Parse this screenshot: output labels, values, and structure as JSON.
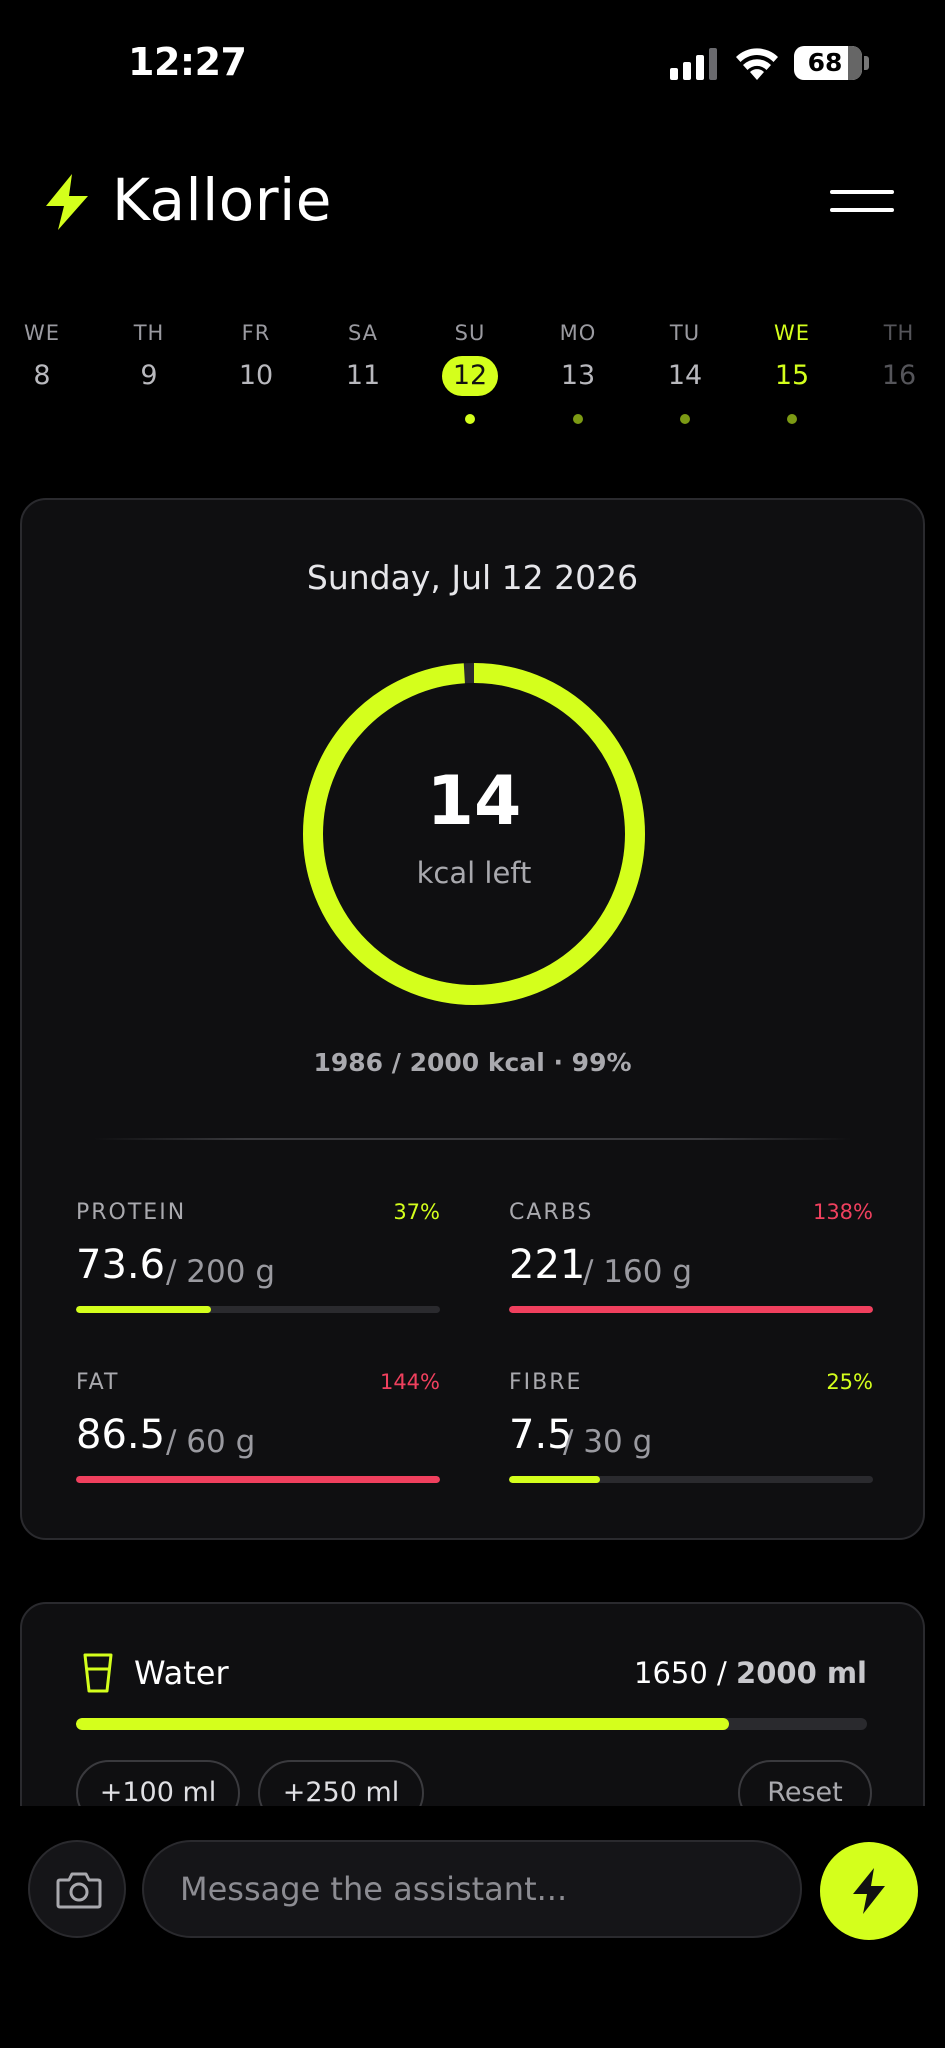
{
  "status_bar": {
    "time": "12:27",
    "battery": "68"
  },
  "header": {
    "app_title": "Kallorie",
    "logo_icon": "lightning-bolt-icon",
    "menu_icon": "hamburger-menu-icon"
  },
  "week": [
    {
      "name": "WE",
      "num": "8"
    },
    {
      "name": "TH",
      "num": "9"
    },
    {
      "name": "FR",
      "num": "10"
    },
    {
      "name": "SA",
      "num": "11"
    },
    {
      "name": "SU",
      "num": "12",
      "selected": true,
      "logged": true
    },
    {
      "name": "MO",
      "num": "13",
      "logged": true
    },
    {
      "name": "TU",
      "num": "14",
      "logged": true
    },
    {
      "name": "WE",
      "num": "15",
      "today": true,
      "logged": true
    },
    {
      "name": "TH",
      "num": "16",
      "future": true
    }
  ],
  "summary": {
    "date": "Sunday, Jul 12 2026",
    "kcal_left": "14",
    "kcal_left_label": "kcal left",
    "ring_progress": 0.99,
    "kcal_summary": "1986 / 2000 kcal · 99%"
  },
  "macros": [
    {
      "name": "PROTEIN",
      "pct": "37%",
      "value": "73.6",
      "target": "/ 200 g",
      "progress": 0.37,
      "over": false
    },
    {
      "name": "CARBS",
      "pct": "138%",
      "value": "221",
      "target": "/ 160 g",
      "progress": 1.0,
      "over": true
    },
    {
      "name": "FAT",
      "pct": "144%",
      "value": "86.5",
      "target": "/ 60 g",
      "progress": 1.0,
      "over": true
    },
    {
      "name": "FIBRE",
      "pct": "25%",
      "value": "7.5",
      "target": "/ 30 g",
      "progress": 0.25,
      "over": false
    }
  ],
  "water": {
    "title": "Water",
    "icon": "glass-icon",
    "current": "1650",
    "separator": " / ",
    "target": "2000 ml",
    "progress": 0.825,
    "buttons": {
      "add_100": "+100 ml",
      "add_250": "+250 ml",
      "reset": "Reset"
    }
  },
  "composer": {
    "placeholder": "Message the assistant...",
    "camera_icon": "camera-icon",
    "send_icon": "lightning-bolt-icon"
  },
  "colors": {
    "accent": "#d4ff1c",
    "over": "#f0405e",
    "background": "#000000",
    "card": "#0f0f11"
  }
}
